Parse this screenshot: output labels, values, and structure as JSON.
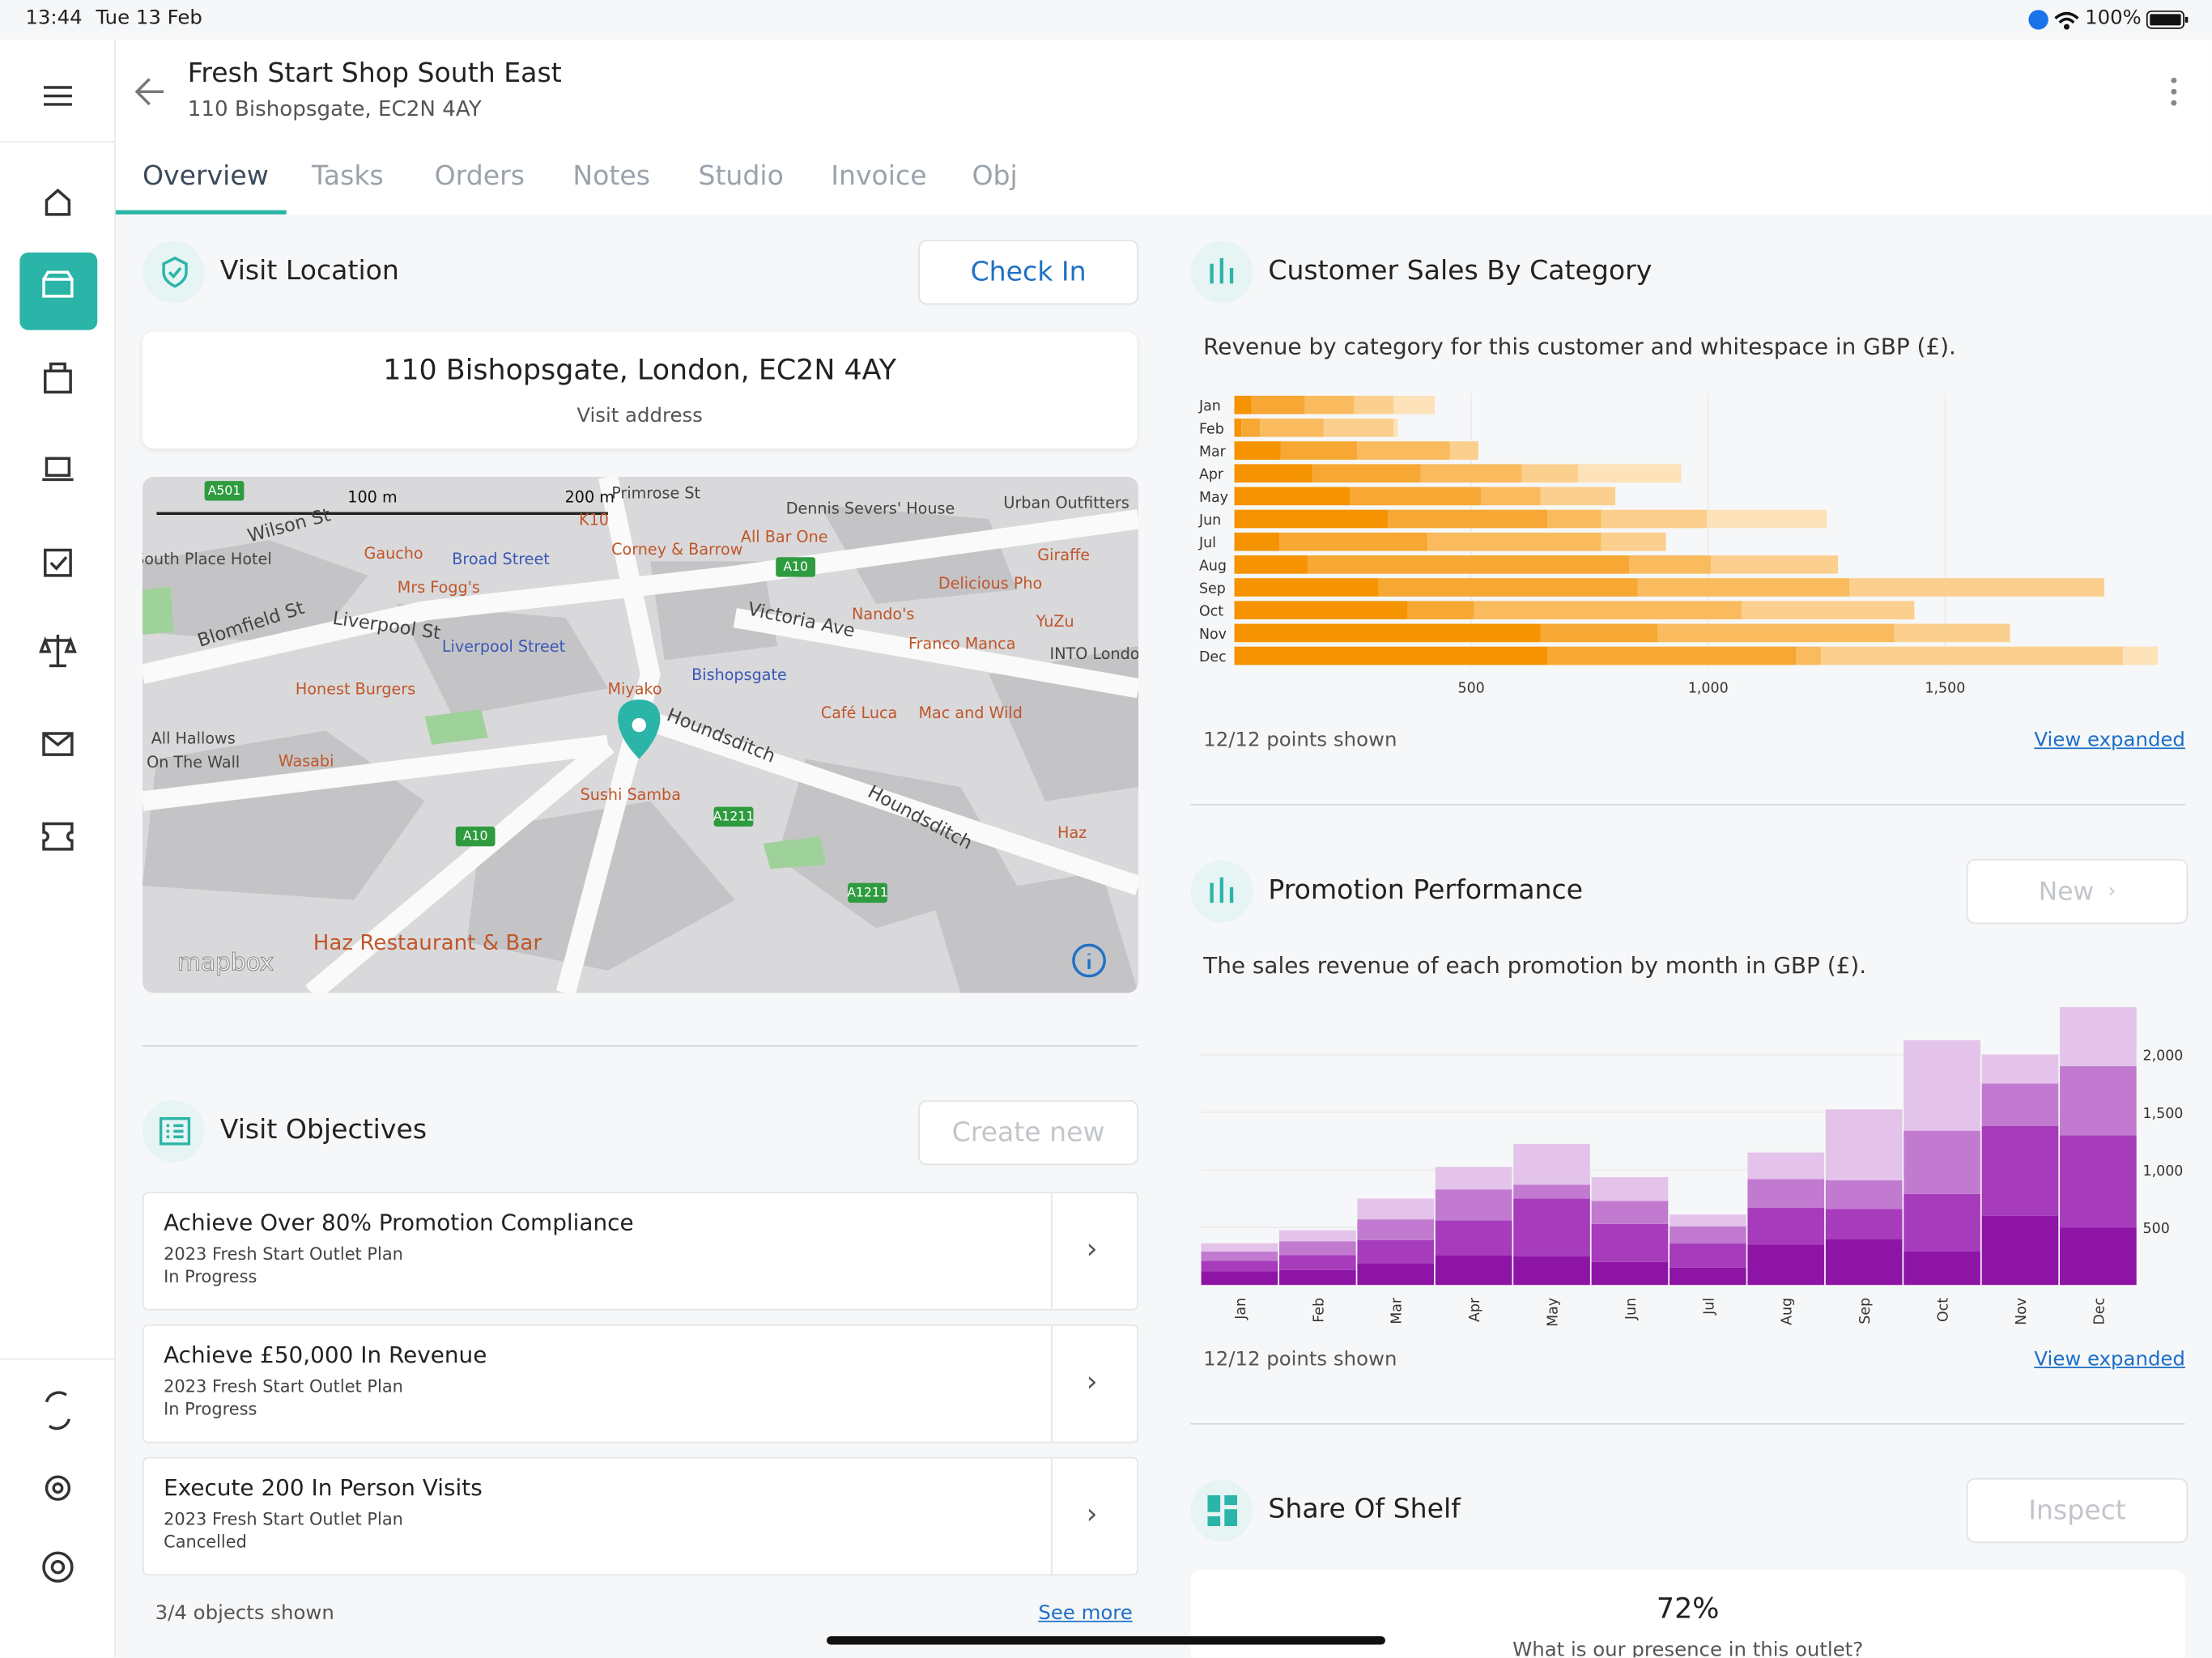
{
  "status_bar": {
    "time": "13:44",
    "date": "Tue 13 Feb",
    "battery": "100%"
  },
  "header": {
    "title": "Fresh Start Shop South East",
    "subtitle": "110 Bishopsgate, EC2N 4AY"
  },
  "tabs": [
    "Overview",
    "Tasks",
    "Orders",
    "Notes",
    "Studio",
    "Invoice",
    "Obj"
  ],
  "visit_location": {
    "title": "Visit Location",
    "button": "Check In",
    "address": "110 Bishopsgate, London, EC2N 4AY",
    "address_caption": "Visit address"
  },
  "map": {
    "labels": [
      "A501",
      "100 m",
      "200 m",
      "Primrose St",
      "Dennis Severs' House",
      "Urban Outfitters",
      "Wilson St",
      "K10",
      "Gaucho",
      "Broad Street",
      "Corney & Barrow",
      "All Bar One",
      "Giraffe",
      "South Place Hotel",
      "Mrs Fogg's",
      "A10",
      "Delicious Pho",
      "Blomfield St",
      "Liverpool St",
      "Nando's",
      "Victoria Ave",
      "YuZu",
      "Liverpool Street",
      "Franco Manca",
      "INTO Londo",
      "Honest Burgers",
      "Miyako",
      "Bishopsgate",
      "Café Luca",
      "Mac and Wild",
      "All Hallows",
      "On The Wall",
      "Wasabi",
      "Houndsditch",
      "Sushi Samba",
      "A1211",
      "Houndsditch",
      "A10",
      "A1211",
      "Haz",
      "Haz Restaurant & Bar",
      "mapbox"
    ]
  },
  "visit_objectives": {
    "title": "Visit Objectives",
    "button": "Create new",
    "items": [
      {
        "title": "Achieve Over 80% Promotion Compliance",
        "plan": "2023 Fresh Start Outlet Plan",
        "status": "In Progress"
      },
      {
        "title": "Achieve £50,000 In Revenue",
        "plan": "2023 Fresh Start Outlet Plan",
        "status": "In Progress"
      },
      {
        "title": "Execute 200 In Person Visits",
        "plan": "2023 Fresh Start Outlet Plan",
        "status": "Cancelled"
      }
    ],
    "footer": "3/4 objects shown",
    "link": "See more"
  },
  "chart_data": [
    {
      "type": "bar",
      "orientation": "horizontal",
      "title": "Customer Sales By Category",
      "subtitle": "Revenue by category for this customer and whitespace in GBP (£).",
      "categories": [
        "Jan",
        "Feb",
        "Mar",
        "Apr",
        "May",
        "Jun",
        "Jul",
        "Aug",
        "Sep",
        "Oct",
        "Nov",
        "Dec"
      ],
      "series": [
        {
          "color": "#f59300",
          "values": [
            36,
            15,
            98,
            164,
            244,
            324,
            95,
            155,
            304,
            366,
            646,
            661
          ]
        },
        {
          "color": "#f7a733",
          "values": [
            113,
            39,
            161,
            229,
            277,
            337,
            313,
            678,
            547,
            140,
            247,
            524
          ]
        },
        {
          "color": "#f9bb5e",
          "values": [
            104,
            134,
            196,
            214,
            125,
            113,
            366,
            173,
            447,
            565,
            500,
            53
          ]
        },
        {
          "color": "#fbcf8d",
          "values": [
            83,
            148,
            60,
            119,
            158,
            223,
            137,
            268,
            538,
            364,
            244,
            637
          ]
        },
        {
          "color": "#fde2ba",
          "values": [
            87,
            9,
            0,
            217,
            0,
            253,
            0,
            0,
            0,
            0,
            0,
            74
          ]
        }
      ],
      "xlim": [
        0,
        1950
      ],
      "xticks": [
        500,
        {
          "value": 1000,
          "label": "1,000"
        },
        {
          "value": 1500,
          "label": "1,500"
        }
      ],
      "grid": true,
      "footer": "12/12 points shown",
      "link": "View expanded"
    },
    {
      "type": "bar",
      "orientation": "vertical",
      "title": "Promotion Performance",
      "subtitle": "The sales revenue of each promotion by month in GBP (£).",
      "button": "New",
      "categories": [
        "Jan",
        "Feb",
        "Mar",
        "Apr",
        "May",
        "Jun",
        "Jul",
        "Aug",
        "Sep",
        "Oct",
        "Nov",
        "Dec"
      ],
      "series": [
        {
          "color": "#8e14a6",
          "values": [
            120,
            130,
            190,
            260,
            250,
            200,
            150,
            350,
            400,
            290,
            600,
            500
          ]
        },
        {
          "color": "#a63bbb",
          "values": [
            90,
            130,
            200,
            300,
            500,
            330,
            210,
            320,
            260,
            500,
            780,
            800
          ]
        },
        {
          "color": "#c27ad0",
          "values": [
            80,
            120,
            180,
            270,
            120,
            200,
            150,
            250,
            250,
            550,
            370,
            600
          ]
        },
        {
          "color": "#e3c3ea",
          "values": [
            72,
            95,
            180,
            195,
            355,
            207,
            102,
            230,
            615,
            785,
            250,
            512
          ]
        }
      ],
      "ylim": [
        0,
        2450
      ],
      "yticks": [
        500,
        {
          "value": 1000,
          "label": "1,000"
        },
        {
          "value": 1500,
          "label": "1,500"
        },
        {
          "value": 2000,
          "label": "2,000"
        }
      ],
      "grid": true,
      "footer": "12/12 points shown",
      "link": "View expanded"
    }
  ],
  "share_of_shelf": {
    "title": "Share Of Shelf",
    "button": "Inspect",
    "value": "72%",
    "caption": "What is our presence in this outlet?"
  }
}
